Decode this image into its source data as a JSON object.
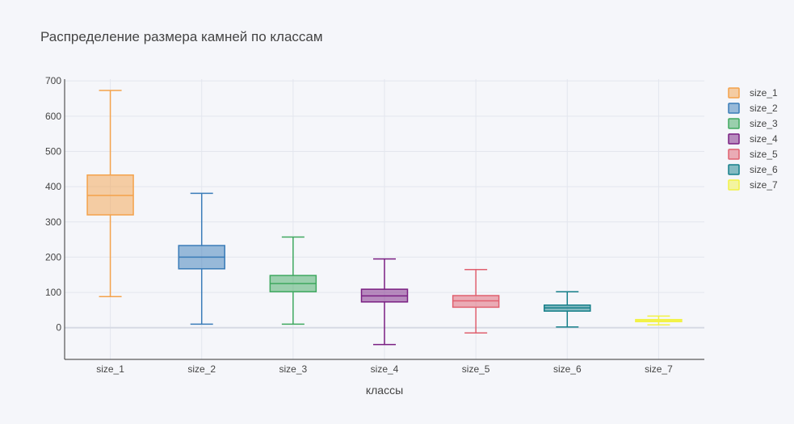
{
  "chart_data": {
    "type": "box",
    "title": "Распределение размера камней по классам",
    "xlabel": "классы",
    "ylabel": "",
    "ylim": [
      -90,
      705
    ],
    "yticks": [
      0,
      100,
      200,
      300,
      400,
      500,
      600,
      700
    ],
    "grid": true,
    "legend_position": "right",
    "categories": [
      "size_1",
      "size_2",
      "size_3",
      "size_4",
      "size_5",
      "size_6",
      "size_7"
    ],
    "series": [
      {
        "name": "size_1",
        "color": "#f4a24b",
        "lower_fence": 88,
        "q1": 320,
        "median": 375,
        "q3": 433,
        "upper_fence": 673
      },
      {
        "name": "size_2",
        "color": "#3a7cb8",
        "lower_fence": 10,
        "q1": 167,
        "median": 200,
        "q3": 233,
        "upper_fence": 381
      },
      {
        "name": "size_3",
        "color": "#3fa85f",
        "lower_fence": 10,
        "q1": 102,
        "median": 125,
        "q3": 148,
        "upper_fence": 257
      },
      {
        "name": "size_4",
        "color": "#7a1f82",
        "lower_fence": -48,
        "q1": 73,
        "median": 90,
        "q3": 109,
        "upper_fence": 195
      },
      {
        "name": "size_5",
        "color": "#e0606f",
        "lower_fence": -15,
        "q1": 58,
        "median": 76,
        "q3": 91,
        "upper_fence": 165
      },
      {
        "name": "size_6",
        "color": "#157f89",
        "lower_fence": 2,
        "q1": 47,
        "median": 56,
        "q3": 64,
        "upper_fence": 102
      },
      {
        "name": "size_7",
        "color": "#f2f245",
        "lower_fence": 8,
        "q1": 17,
        "median": 20,
        "q3": 23,
        "upper_fence": 33
      }
    ]
  }
}
